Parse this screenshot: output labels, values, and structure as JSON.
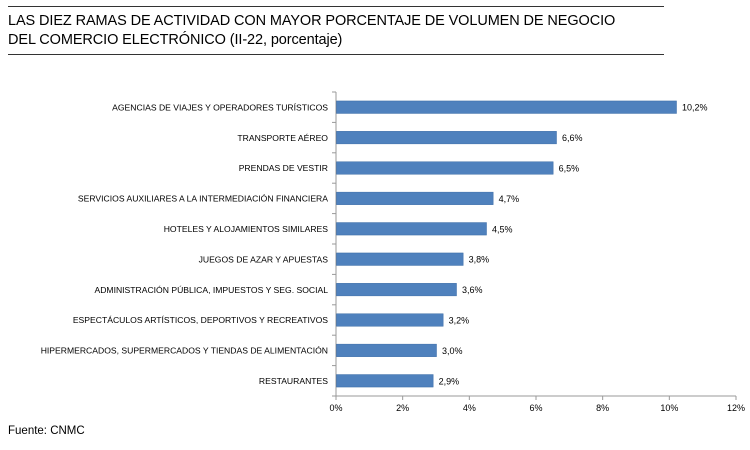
{
  "title": {
    "line1": "LAS DIEZ RAMAS DE ACTIVIDAD CON MAYOR PORCENTAJE DE VOLUMEN DE NEGOCIO",
    "line2": "DEL COMERCIO ELECTRÓNICO (II-22, porcentaje)"
  },
  "source": "Fuente: CNMC",
  "colors": {
    "bar": "#4F81BD",
    "bar_edge": "#3A6BA5",
    "axis": "#999999"
  },
  "chart_data": {
    "type": "bar",
    "orientation": "horizontal",
    "categories": [
      "AGENCIAS DE VIAJES Y OPERADORES TURÍSTICOS",
      "TRANSPORTE AÉREO",
      "PRENDAS DE VESTIR",
      "SERVICIOS AUXILIARES A LA INTERMEDIACIÓN FINANCIERA",
      "HOTELES  Y ALOJAMIENTOS SIMILARES",
      "JUEGOS DE AZAR Y APUESTAS",
      "ADMINISTRACIÓN PÚBLICA, IMPUESTOS Y SEG. SOCIAL",
      "ESPECTÁCULOS ARTÍSTICOS, DEPORTIVOS Y RECREATIVOS",
      "HIPERMERCADOS, SUPERMERCADOS Y TIENDAS DE ALIMENTACIÓN",
      "RESTAURANTES"
    ],
    "values": [
      10.2,
      6.6,
      6.5,
      4.7,
      4.5,
      3.8,
      3.6,
      3.2,
      3.0,
      2.9
    ],
    "data_labels": [
      "10,2%",
      "6,6%",
      "6,5%",
      "4,7%",
      "4,5%",
      "3,8%",
      "3,6%",
      "3,2%",
      "3,0%",
      "2,9%"
    ],
    "xlim": [
      0,
      12
    ],
    "xticks": [
      0,
      2,
      4,
      6,
      8,
      10,
      12
    ],
    "xtick_labels": [
      "0%",
      "2%",
      "4%",
      "6%",
      "8%",
      "10%",
      "12%"
    ],
    "grid": false,
    "legend": "none"
  }
}
